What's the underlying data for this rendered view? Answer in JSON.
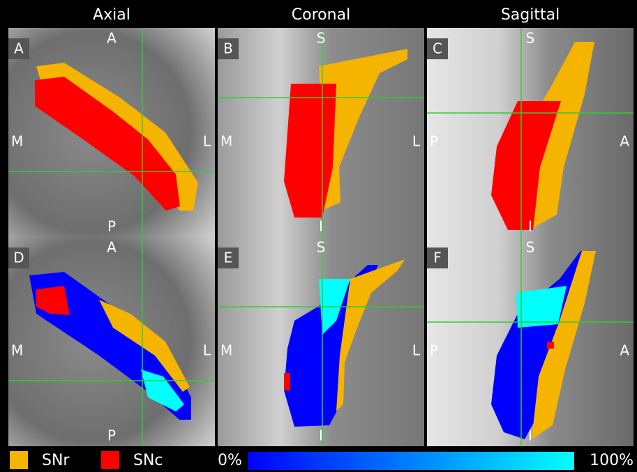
{
  "headers": [
    "Axial",
    "Coronal",
    "Sagittal"
  ],
  "panels": [
    {
      "label": "A",
      "orientation": {
        "top": "A",
        "left": "M",
        "right": "L",
        "bottom": "P"
      }
    },
    {
      "label": "B",
      "orientation": {
        "top": "S",
        "left": "M",
        "right": "L",
        "bottom": "I"
      }
    },
    {
      "label": "C",
      "orientation": {
        "top": "S",
        "left": "P",
        "right": "A",
        "bottom": "I"
      }
    },
    {
      "label": "D",
      "orientation": {
        "top": "A",
        "left": "M",
        "right": "L",
        "bottom": "P"
      }
    },
    {
      "label": "E",
      "orientation": {
        "top": "S",
        "left": "M",
        "right": "L",
        "bottom": "I"
      }
    },
    {
      "label": "F",
      "orientation": {
        "top": "S",
        "left": "P",
        "right": "A",
        "bottom": "I"
      }
    }
  ],
  "legend": {
    "items": [
      {
        "label": "SNr",
        "color": "#f5b400"
      },
      {
        "label": "SNc",
        "color": "#ff0000"
      }
    ],
    "colorbar": {
      "min_label": "0%",
      "max_label": "100%",
      "min_color": "#0000ff",
      "max_color": "#00ffff"
    }
  }
}
